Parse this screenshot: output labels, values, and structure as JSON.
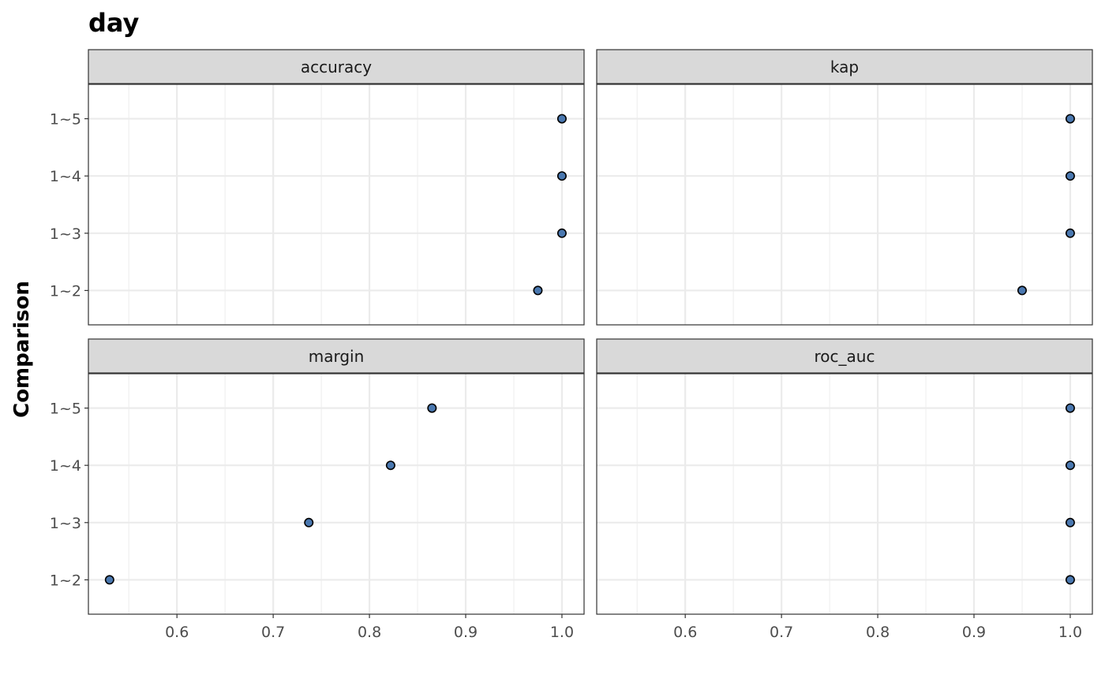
{
  "chart_data": {
    "type": "scatter",
    "title": "day",
    "xlabel": "",
    "ylabel": "Comparison",
    "xlim": [
      0.508,
      1.023
    ],
    "x_ticks": [
      0.6,
      0.7,
      0.8,
      0.9,
      1.0
    ],
    "x_tick_labels": [
      "0.6",
      "0.7",
      "0.8",
      "0.9",
      "1.0"
    ],
    "y_categories": [
      "1~2",
      "1~3",
      "1~4",
      "1~5"
    ],
    "grid": true,
    "point_fill": "#4a78b0",
    "point_stroke": "#000000",
    "strip_fill": "#d9d9d9",
    "panels": [
      {
        "name": "accuracy",
        "points": [
          {
            "y": "1~2",
            "x": 0.975
          },
          {
            "y": "1~3",
            "x": 1.0
          },
          {
            "y": "1~4",
            "x": 1.0
          },
          {
            "y": "1~5",
            "x": 1.0
          }
        ]
      },
      {
        "name": "kap",
        "points": [
          {
            "y": "1~2",
            "x": 0.95
          },
          {
            "y": "1~3",
            "x": 1.0
          },
          {
            "y": "1~4",
            "x": 1.0
          },
          {
            "y": "1~5",
            "x": 1.0
          }
        ]
      },
      {
        "name": "margin",
        "points": [
          {
            "y": "1~2",
            "x": 0.53
          },
          {
            "y": "1~3",
            "x": 0.737
          },
          {
            "y": "1~4",
            "x": 0.822
          },
          {
            "y": "1~5",
            "x": 0.865
          }
        ]
      },
      {
        "name": "roc_auc",
        "points": [
          {
            "y": "1~2",
            "x": 1.0
          },
          {
            "y": "1~3",
            "x": 1.0
          },
          {
            "y": "1~4",
            "x": 1.0
          },
          {
            "y": "1~5",
            "x": 1.0
          }
        ]
      }
    ]
  }
}
